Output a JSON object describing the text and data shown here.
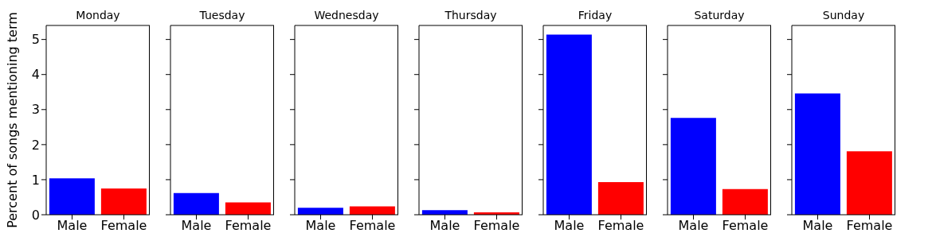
{
  "chart_data": [
    {
      "type": "bar",
      "title": "Monday",
      "ylabel": "Percent of songs mentioning term",
      "categories": [
        "Male",
        "Female"
      ],
      "values": [
        1.04,
        0.75
      ],
      "colors": [
        "#0000ff",
        "#ff0000"
      ],
      "ylim": [
        0,
        5.4
      ],
      "yticks": [
        0,
        1,
        2,
        3,
        4,
        5
      ],
      "grid": false
    },
    {
      "type": "bar",
      "title": "Tuesday",
      "categories": [
        "Male",
        "Female"
      ],
      "values": [
        0.62,
        0.35
      ],
      "colors": [
        "#0000ff",
        "#ff0000"
      ],
      "ylim": [
        0,
        5.4
      ],
      "yticks": [
        0,
        1,
        2,
        3,
        4,
        5
      ],
      "grid": false,
      "tick_labels": "x"
    },
    {
      "type": "bar",
      "title": "Wednesday",
      "categories": [
        "Male",
        "Female"
      ],
      "values": [
        0.2,
        0.24
      ],
      "colors": [
        "#0000ff",
        "#ff0000"
      ],
      "ylim": [
        0,
        5.4
      ],
      "yticks": [
        0,
        1,
        2,
        3,
        4,
        5
      ],
      "grid": false,
      "tick_labels": "x"
    },
    {
      "type": "bar",
      "title": "Thursday",
      "categories": [
        "Male",
        "Female"
      ],
      "values": [
        0.13,
        0.07
      ],
      "colors": [
        "#0000ff",
        "#ff0000"
      ],
      "ylim": [
        0,
        5.4
      ],
      "yticks": [
        0,
        1,
        2,
        3,
        4,
        5
      ],
      "grid": false,
      "tick_labels": "x"
    },
    {
      "type": "bar",
      "title": "Friday",
      "categories": [
        "Male",
        "Female"
      ],
      "values": [
        5.14,
        0.93
      ],
      "colors": [
        "#0000ff",
        "#ff0000"
      ],
      "ylim": [
        0,
        5.4
      ],
      "yticks": [
        0,
        1,
        2,
        3,
        4,
        5
      ],
      "grid": false,
      "tick_labels": "x"
    },
    {
      "type": "bar",
      "title": "Saturday",
      "categories": [
        "Male",
        "Female"
      ],
      "values": [
        2.76,
        0.73
      ],
      "colors": [
        "#0000ff",
        "#ff0000"
      ],
      "ylim": [
        0,
        5.4
      ],
      "yticks": [
        0,
        1,
        2,
        3,
        4,
        5
      ],
      "grid": false,
      "tick_labels": "x"
    },
    {
      "type": "bar",
      "title": "Sunday",
      "categories": [
        "Male",
        "Female"
      ],
      "values": [
        3.46,
        1.81
      ],
      "colors": [
        "#0000ff",
        "#ff0000"
      ],
      "ylim": [
        0,
        5.4
      ],
      "yticks": [
        0,
        1,
        2,
        3,
        4,
        5
      ],
      "grid": false,
      "tick_labels": "x"
    }
  ]
}
